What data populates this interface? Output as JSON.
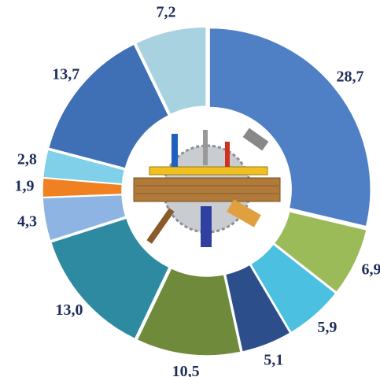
{
  "chart_data": {
    "type": "donut",
    "values": [
      28.7,
      6.9,
      5.9,
      5.1,
      10.5,
      13.0,
      4.3,
      1.9,
      2.8,
      13.7,
      7.2
    ],
    "value_labels": [
      "28,7",
      "6,9",
      "5,9",
      "5,1",
      "10,5",
      "13,0",
      "4,3",
      "1,9",
      "2,8",
      "13,7",
      "7,2"
    ],
    "colors": [
      "#4f7fc4",
      "#9bbb59",
      "#4bc0e0",
      "#2c4e8a",
      "#6f8a3a",
      "#2e8aa0",
      "#8db4e2",
      "#f08020",
      "#7fd0e8",
      "#3f6fb5",
      "#a8d2e0"
    ]
  }
}
